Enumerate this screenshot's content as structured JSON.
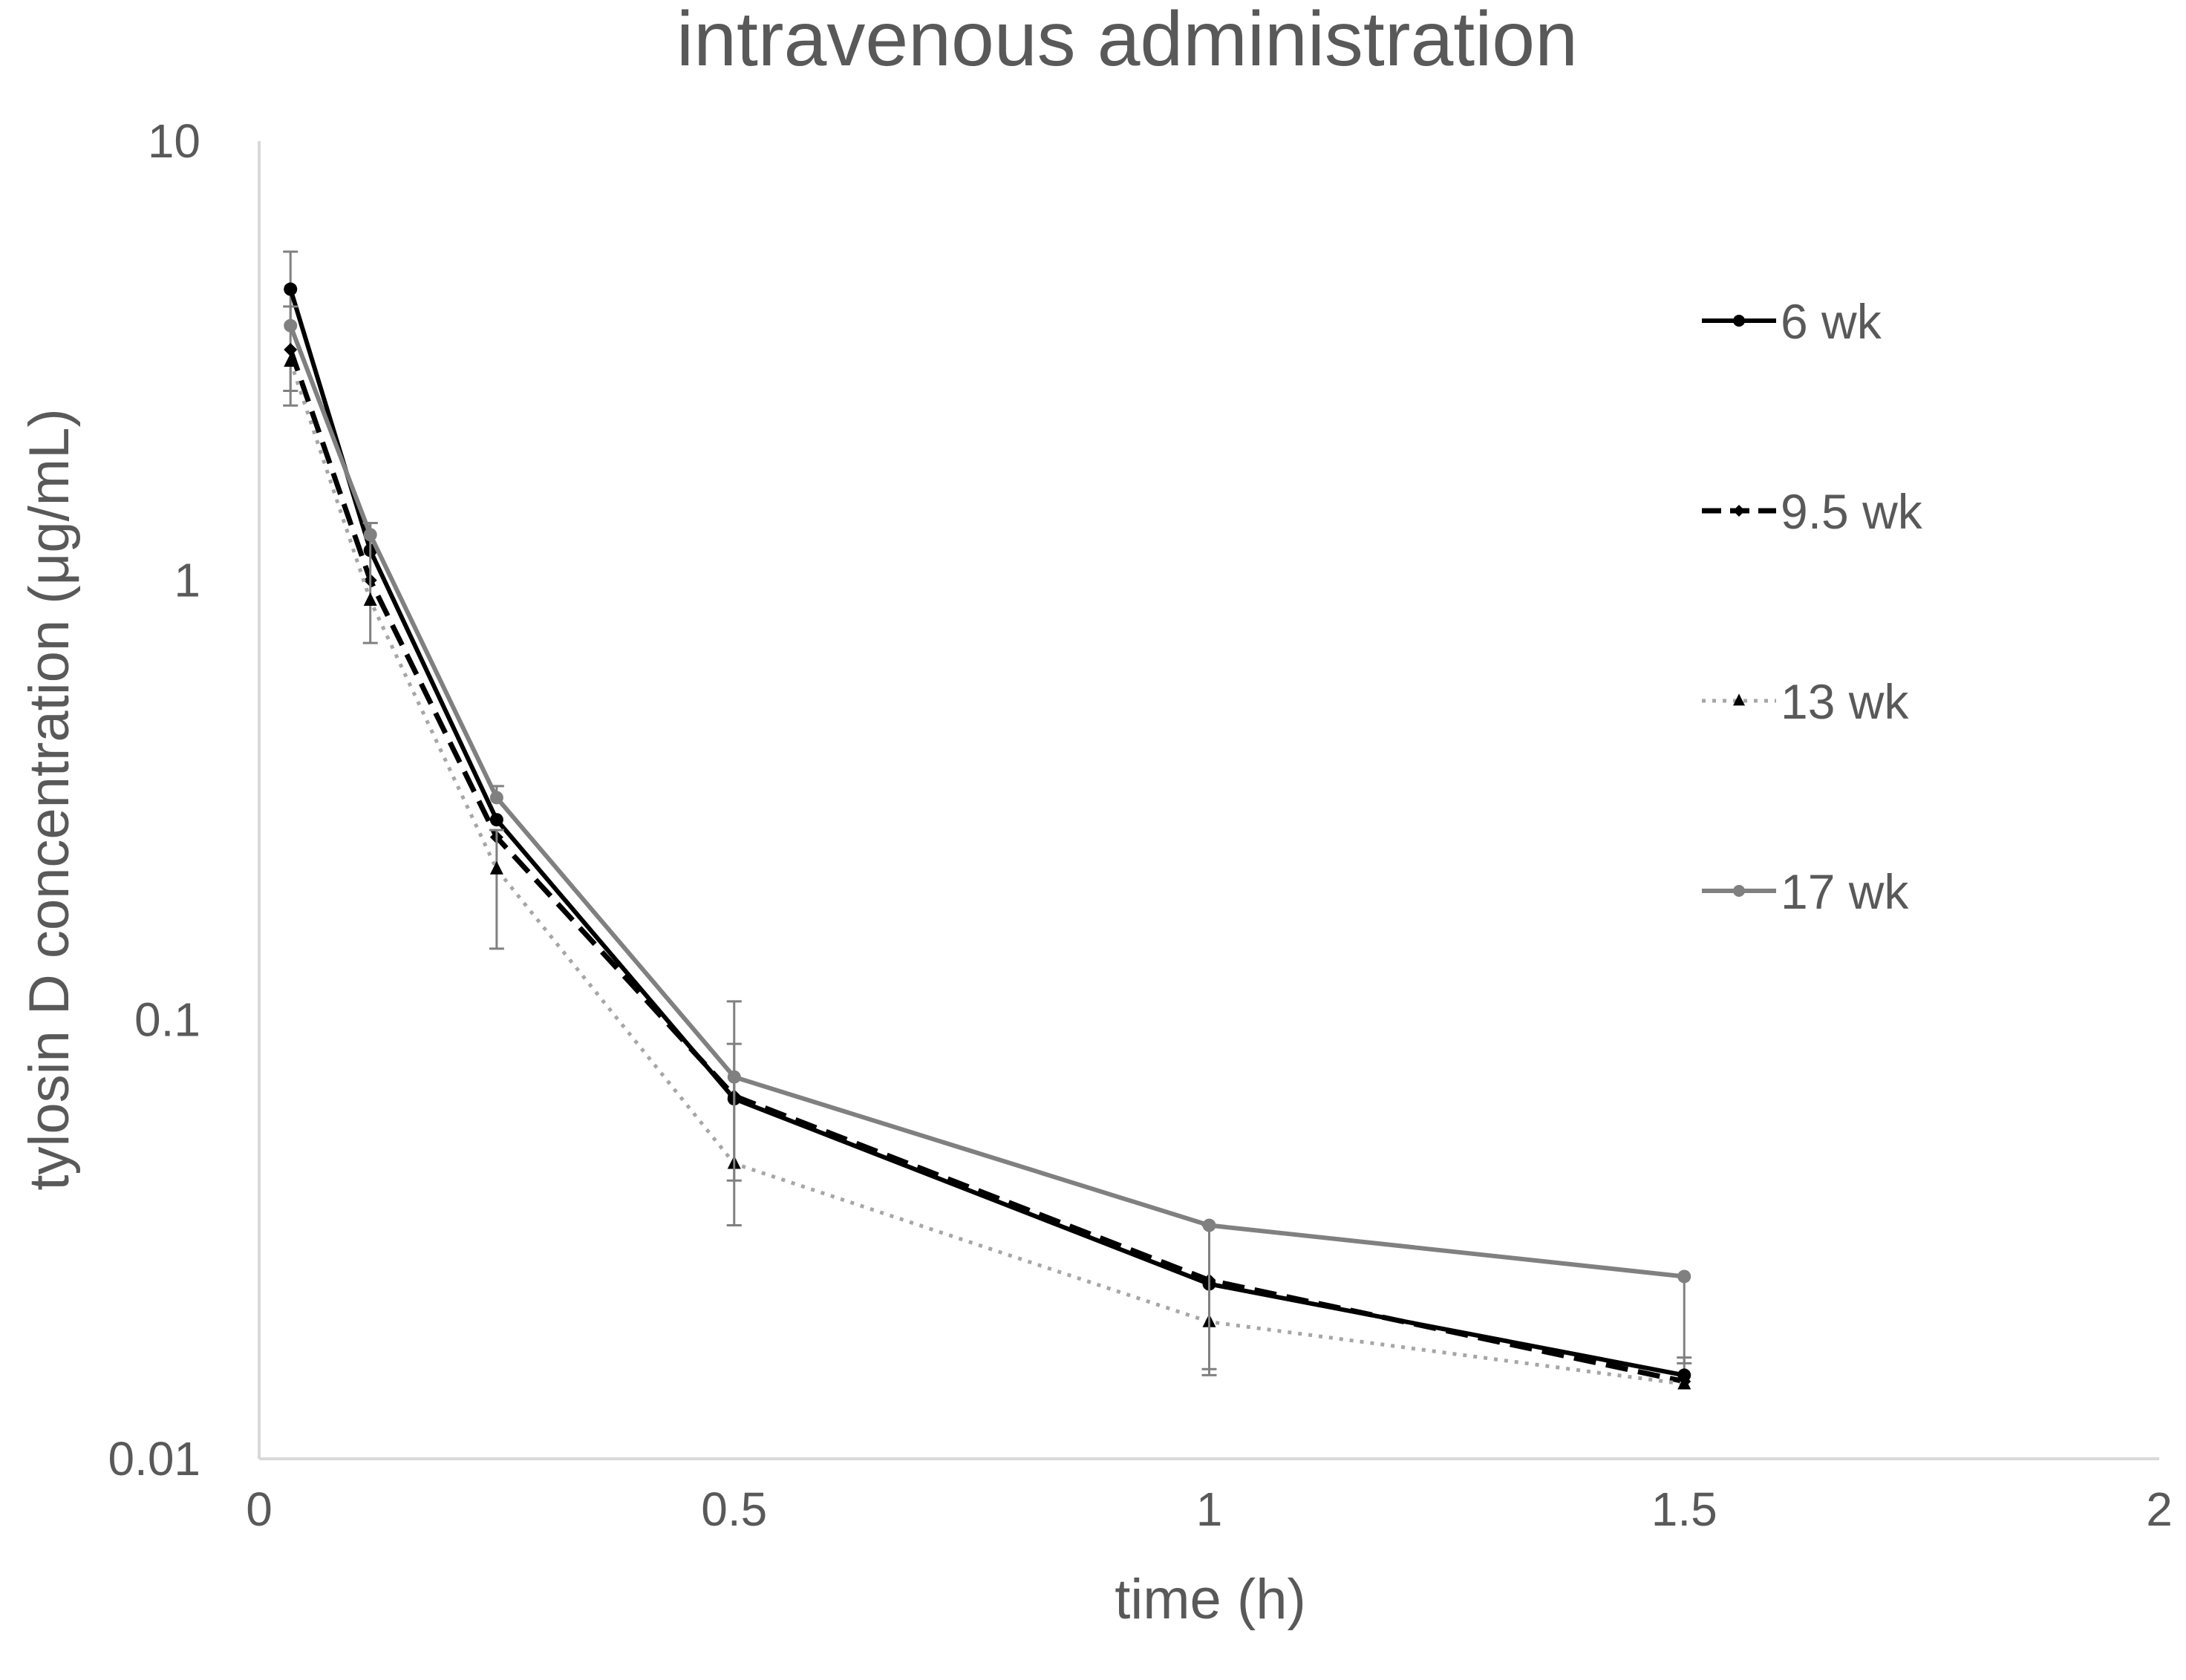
{
  "chart_data": {
    "type": "line",
    "title": "intravenous administration",
    "xlabel": "time (h)",
    "ylabel": "tylosin D concentration (μg/mL)",
    "yscale": "log",
    "xlim": [
      0,
      2
    ],
    "ylim": [
      0.01,
      10
    ],
    "x_ticks": [
      0,
      0.5,
      1,
      1.5,
      2
    ],
    "x_tick_labels": [
      "0",
      "0.5",
      "1",
      "1.5",
      "2"
    ],
    "y_ticks": [
      0.01,
      0.1,
      1,
      10
    ],
    "y_tick_labels": [
      "0.01",
      "0.1",
      "1",
      "10"
    ],
    "grid": false,
    "legend_position": "right",
    "series": [
      {
        "name": "6 wk",
        "color": "#000000",
        "line_style": "solid",
        "marker": "circle",
        "x": [
          0.033,
          0.117,
          0.25,
          0.5,
          1,
          1.5
        ],
        "y": [
          4.6,
          1.17,
          0.285,
          0.066,
          0.025,
          0.0155
        ],
        "err_upper": [
          5.6,
          null,
          null,
          0.088,
          0.034,
          0.017
        ],
        "err_lower": [
          2.5,
          null,
          null,
          null,
          null,
          null
        ]
      },
      {
        "name": "9.5 wk",
        "color": "#000000",
        "line_style": "dashed",
        "marker": "diamond",
        "x": [
          0.033,
          0.117,
          0.25,
          0.5,
          1,
          1.5
        ],
        "y": [
          3.35,
          1.0,
          0.26,
          0.067,
          0.0255,
          0.015
        ],
        "err_upper": [
          null,
          null,
          null,
          null,
          null,
          null
        ],
        "err_lower": [
          null,
          null,
          null,
          null,
          null,
          null
        ]
      },
      {
        "name": "13 wk",
        "color": "#a6a6a6",
        "marker_color": "#000000",
        "line_style": "dotted",
        "marker": "triangle",
        "x": [
          0.033,
          0.117,
          0.25,
          0.5,
          1,
          1.5
        ],
        "y": [
          3.15,
          0.9,
          0.22,
          0.047,
          0.0205,
          0.0148
        ],
        "err_upper": [
          null,
          1.35,
          0.27,
          0.11,
          null,
          null
        ],
        "err_lower": [
          2.7,
          0.72,
          0.145,
          0.034,
          0.0155,
          null
        ]
      },
      {
        "name": "17 wk",
        "color": "#808080",
        "line_style": "solid",
        "marker": "circle",
        "x": [
          0.033,
          0.117,
          0.25,
          0.5,
          1,
          1.5
        ],
        "y": [
          3.8,
          1.27,
          0.32,
          0.074,
          0.034,
          0.026
        ],
        "err_upper": [
          4.2,
          1.35,
          0.34,
          null,
          null,
          null
        ],
        "err_lower": [
          null,
          null,
          null,
          0.043,
          0.016,
          0.0165
        ]
      }
    ]
  }
}
